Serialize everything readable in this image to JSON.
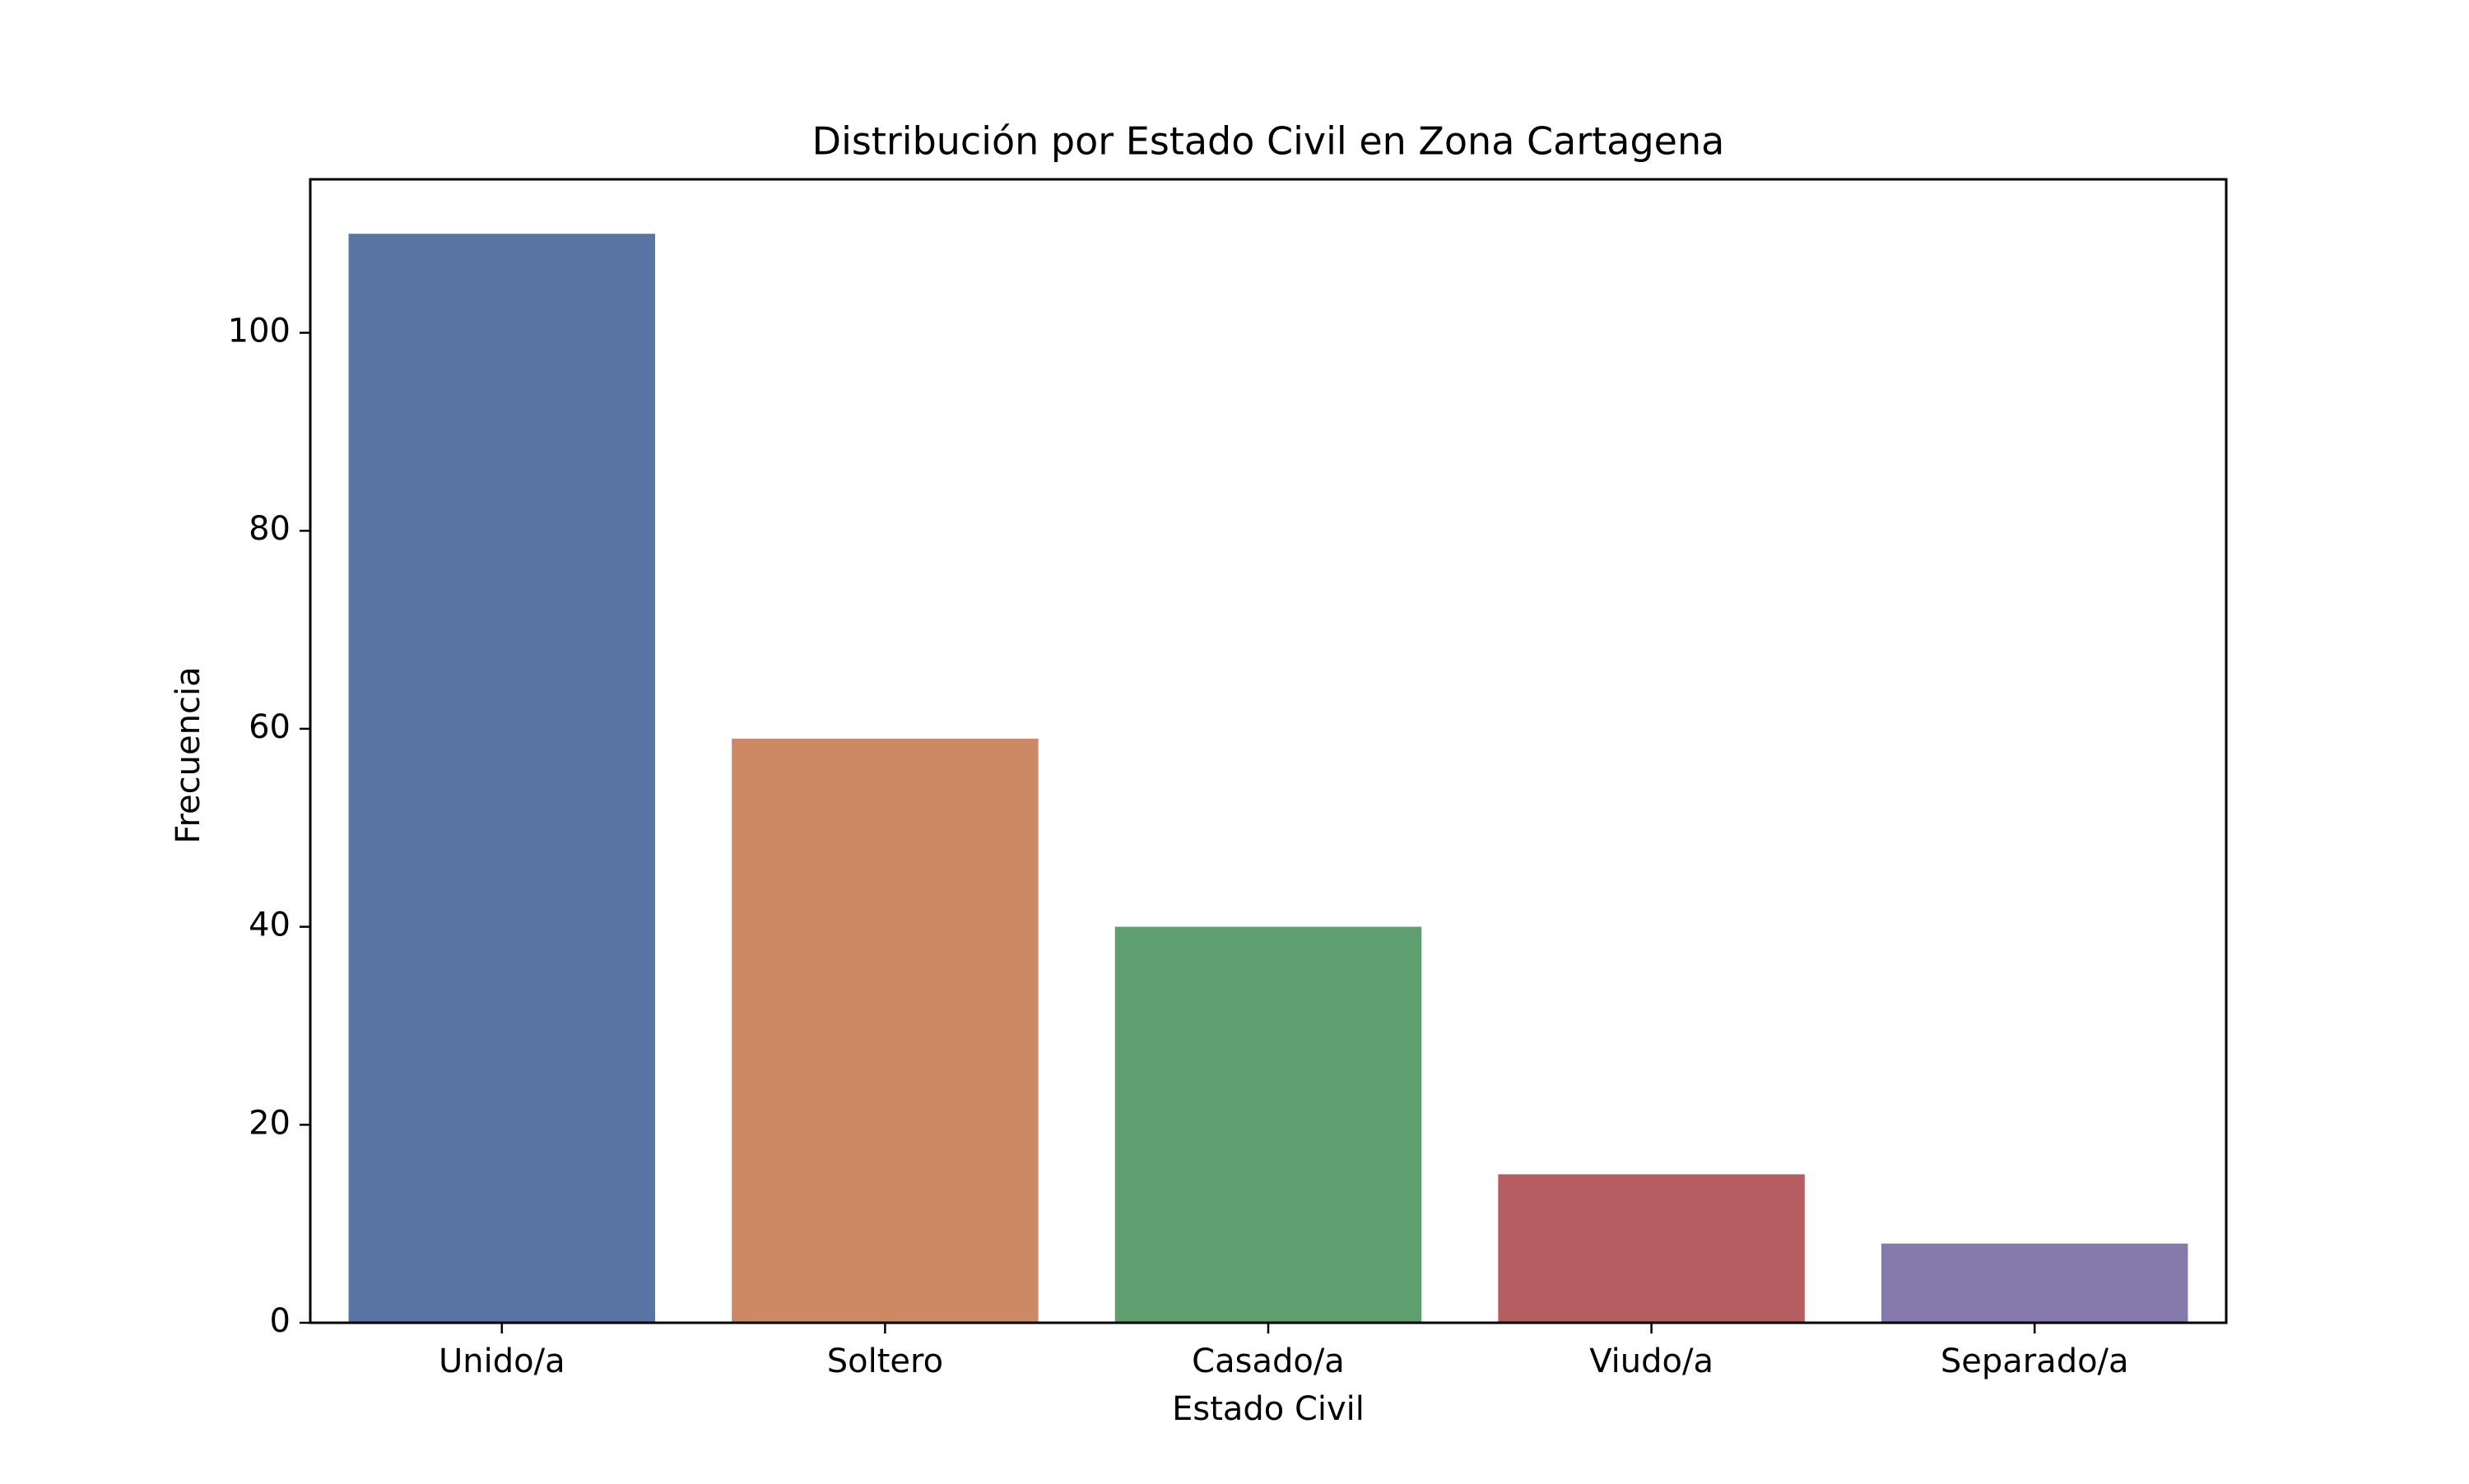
{
  "chart_data": {
    "type": "bar",
    "title": "Distribución por Estado Civil en Zona Cartagena",
    "xlabel": "Estado Civil",
    "ylabel": "Frecuencia",
    "categories": [
      "Unido/a",
      "Soltero",
      "Casado/a",
      "Viudo/a",
      "Separado/a"
    ],
    "values": [
      110,
      59,
      40,
      15,
      8
    ],
    "colors": [
      "#5875a4",
      "#cc8963",
      "#5f9e6e",
      "#b55d60",
      "#857aab"
    ],
    "ylim": [
      0,
      115.5
    ],
    "yticks": [
      0,
      20,
      40,
      60,
      80,
      100
    ],
    "grid": false,
    "legend": "none"
  }
}
